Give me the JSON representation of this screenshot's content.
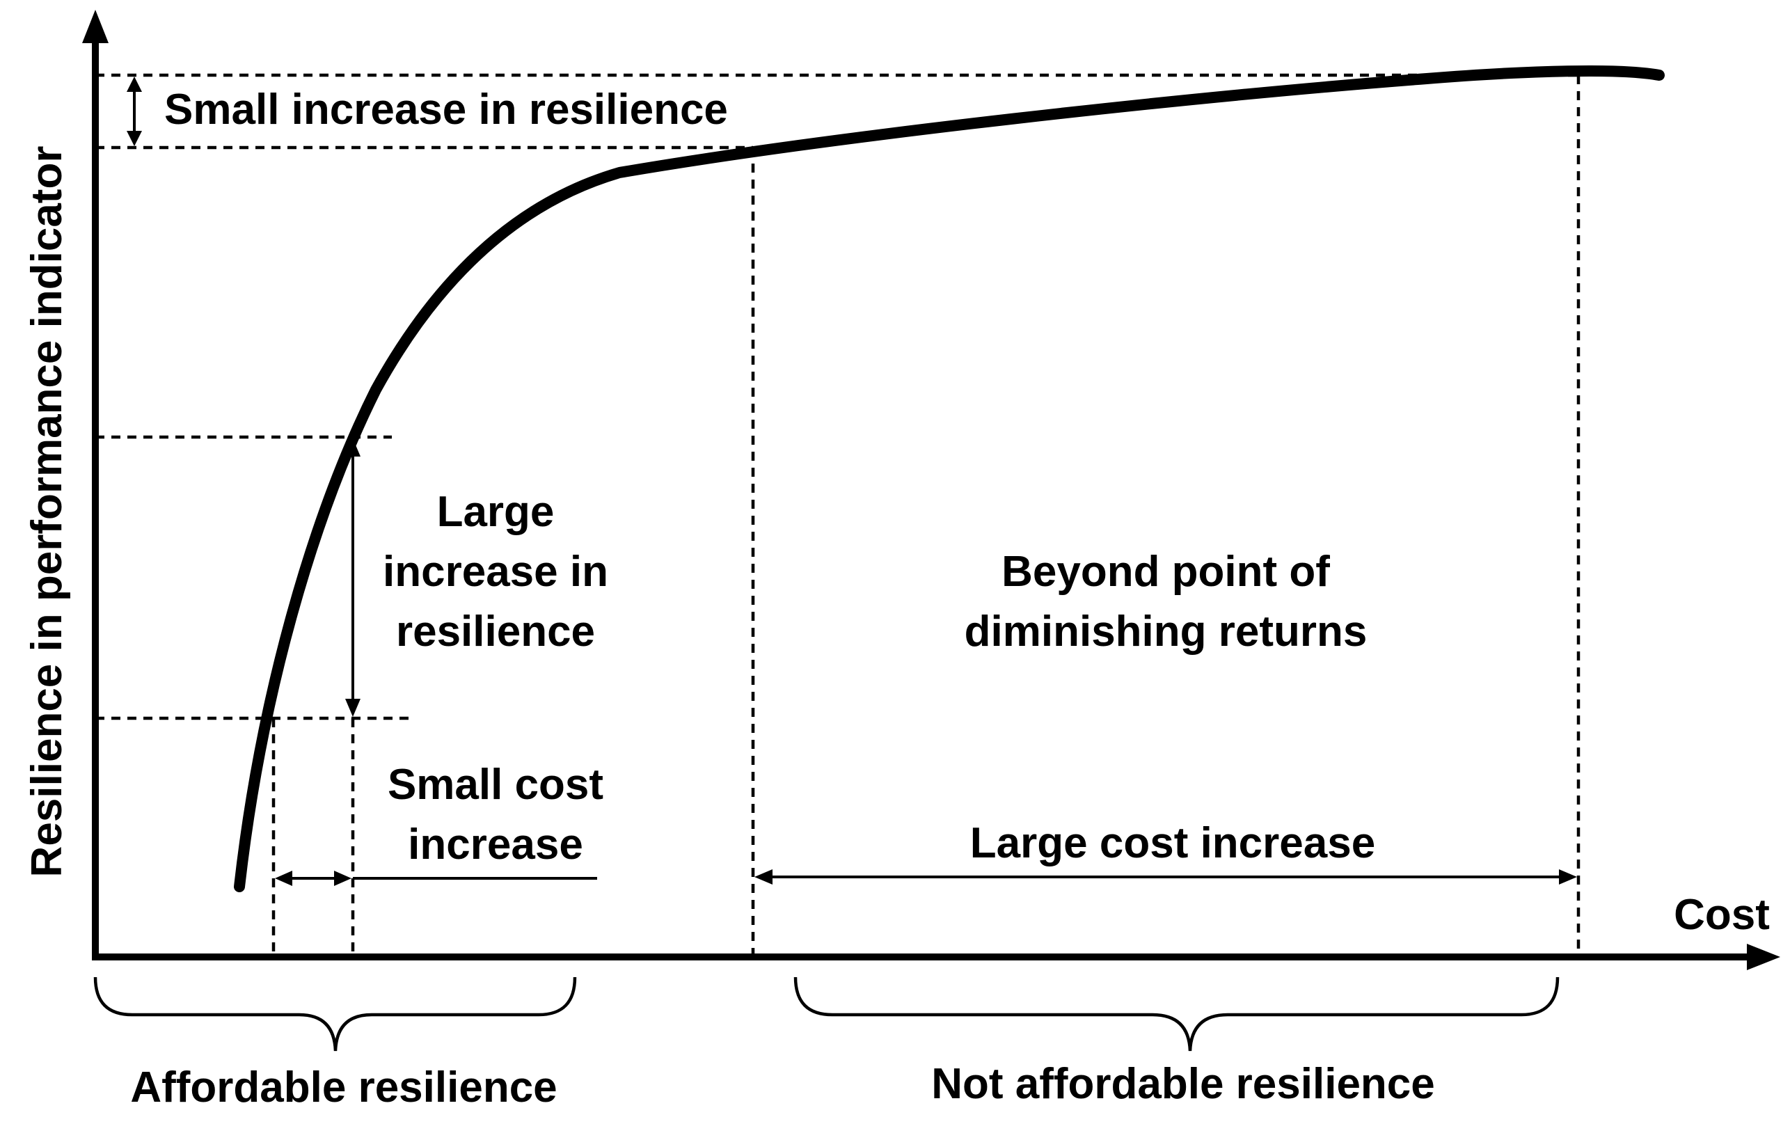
{
  "labels": {
    "y_axis": "Resilience in performance indicator",
    "x_axis": "Cost",
    "small_increase_resilience": "Small increase in resilience",
    "large_increase_line1": "Large",
    "large_increase_line2": "increase in",
    "large_increase_line3": "resilience",
    "small_cost_line1": "Small cost",
    "small_cost_line2": "increase",
    "beyond_line1": "Beyond point of",
    "beyond_line2": "diminishing returns",
    "large_cost_increase": "Large cost increase",
    "affordable": "Affordable resilience",
    "not_affordable": "Not affordable resilience"
  },
  "colors": {
    "ink": "#000000",
    "background": "#ffffff"
  }
}
